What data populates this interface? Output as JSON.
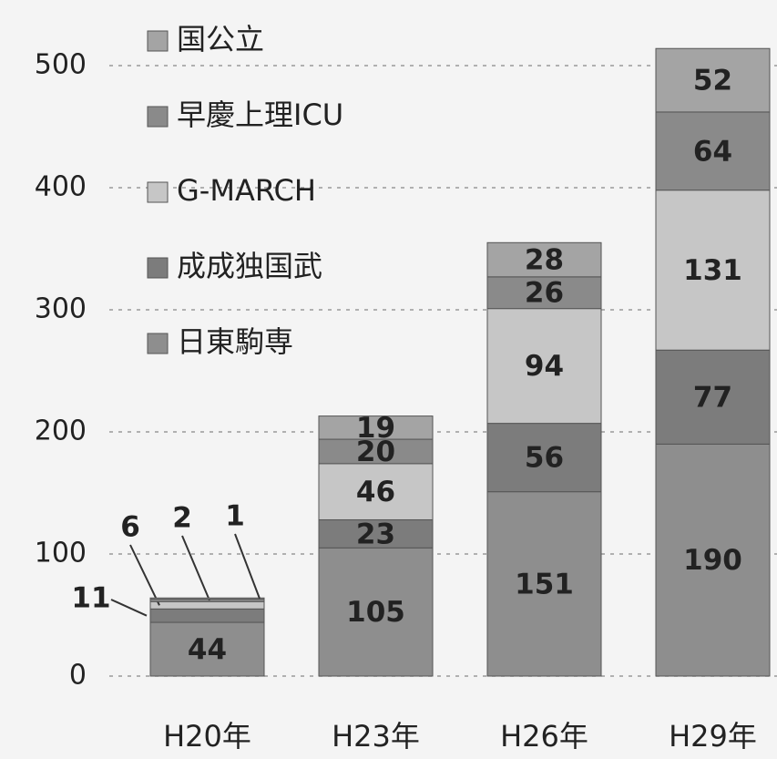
{
  "chart_data": {
    "type": "stacked_bar",
    "categories": [
      "H20年",
      "H23年",
      "H26年",
      "H29年"
    ],
    "series": [
      {
        "name": "日東駒専",
        "color": "#8e8e8e",
        "values": [
          44,
          105,
          151,
          190
        ]
      },
      {
        "name": "成成独国武",
        "color": "#7c7c7c",
        "values": [
          11,
          23,
          56,
          77
        ]
      },
      {
        "name": "G-MARCH",
        "color": "#c6c6c6",
        "values": [
          6,
          46,
          94,
          131
        ]
      },
      {
        "name": "早慶上理ICU",
        "color": "#8a8a8a",
        "values": [
          2,
          20,
          26,
          64
        ]
      },
      {
        "name": "国公立",
        "color": "#a4a4a4",
        "values": [
          1,
          19,
          28,
          52
        ]
      }
    ],
    "ylim": [
      0,
      500
    ],
    "yticks": [
      0,
      100,
      200,
      300,
      400,
      500
    ],
    "grid": true,
    "legend": "top-left"
  }
}
